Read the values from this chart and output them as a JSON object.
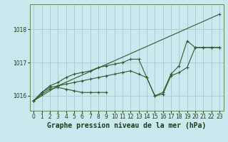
{
  "background_color": "#cce8ef",
  "grid_color": "#aacdd6",
  "line_color": "#2d5a2d",
  "title": "Graphe pression niveau de la mer (hPa)",
  "xlim": [
    -0.5,
    23.5
  ],
  "ylim": [
    1015.55,
    1018.75
  ],
  "yticks": [
    1016,
    1017,
    1018
  ],
  "xtick_labels": [
    "0",
    "1",
    "2",
    "3",
    "4",
    "5",
    "6",
    "7",
    "8",
    "9",
    "10",
    "11",
    "12",
    "13",
    "14",
    "15",
    "16",
    "17",
    "18",
    "19",
    "20",
    "21",
    "22",
    "23"
  ],
  "series_x": [
    [
      0,
      1,
      2,
      3,
      4,
      5,
      6,
      7,
      8,
      9
    ],
    [
      0,
      1,
      2,
      3,
      4,
      5,
      6,
      7,
      8,
      9,
      10,
      11,
      12,
      13,
      14,
      15,
      16,
      17,
      18,
      19,
      20,
      21,
      22,
      23
    ],
    [
      0,
      1,
      2,
      3,
      4,
      5,
      6,
      7,
      8,
      9,
      10,
      11,
      12,
      13,
      14,
      15,
      16,
      17,
      18,
      19,
      20,
      21,
      22,
      23
    ],
    [
      0,
      3,
      23
    ]
  ],
  "series_y": [
    [
      1015.85,
      1016.05,
      1016.2,
      1016.25,
      1016.2,
      1016.15,
      1016.1,
      1016.1,
      1016.1,
      1016.1
    ],
    [
      1015.85,
      1016.1,
      1016.25,
      1016.3,
      1016.35,
      1016.4,
      1016.45,
      1016.5,
      1016.55,
      1016.6,
      1016.65,
      1016.7,
      1016.75,
      1016.65,
      1016.55,
      1016.0,
      1016.05,
      1016.6,
      1016.7,
      1016.85,
      1017.45,
      1017.45,
      1017.45,
      1017.45
    ],
    [
      1015.85,
      1016.1,
      1016.3,
      1016.4,
      1016.55,
      1016.65,
      1016.7,
      1016.75,
      1016.85,
      1016.9,
      1016.95,
      1017.0,
      1017.1,
      1017.1,
      1016.55,
      1016.0,
      1016.1,
      1016.65,
      1016.9,
      1017.65,
      1017.45,
      1017.45,
      1017.45,
      1017.45
    ],
    [
      1015.85,
      1016.3,
      1018.45
    ]
  ],
  "series_markers": [
    true,
    true,
    true,
    false
  ],
  "title_fontsize": 7,
  "tick_fontsize": 5.5
}
